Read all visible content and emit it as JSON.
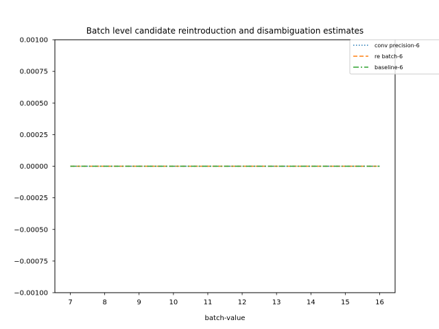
{
  "chart_data": {
    "type": "line",
    "title": "Batch level candidate reintroduction and disambiguation estimates",
    "xlabel": "batch-value",
    "ylabel": "",
    "xlim": [
      6.55,
      16.45
    ],
    "ylim": [
      -0.001,
      0.001
    ],
    "xticks": [
      7,
      8,
      9,
      10,
      11,
      12,
      13,
      14,
      15,
      16
    ],
    "xtick_labels": [
      "7",
      "8",
      "9",
      "10",
      "11",
      "12",
      "13",
      "14",
      "15",
      "16"
    ],
    "yticks": [
      -0.001,
      -0.00075,
      -0.0005,
      -0.00025,
      0,
      0.00025,
      0.0005,
      0.00075,
      0.001
    ],
    "ytick_labels": [
      "−0.00100",
      "−0.00075",
      "−0.00050",
      "−0.00025",
      "0.00000",
      "0.00025",
      "0.00050",
      "0.00075",
      "0.00100"
    ],
    "grid": false,
    "legend_position": "top-right",
    "x": [
      7,
      8,
      9,
      10,
      11,
      12,
      13,
      14,
      15,
      16
    ],
    "series": [
      {
        "name": "conv precision-6",
        "values": [
          0,
          0,
          0,
          0,
          0,
          0,
          0,
          0,
          0,
          0
        ],
        "color": "#1f77b4",
        "linestyle": "dotted"
      },
      {
        "name": "re batch-6",
        "values": [
          0,
          0,
          0,
          0,
          0,
          0,
          0,
          0,
          0,
          0
        ],
        "color": "#ff7f0e",
        "linestyle": "dashed"
      },
      {
        "name": "baseline-6",
        "values": [
          0,
          0,
          0,
          0,
          0,
          0,
          0,
          0,
          0,
          0
        ],
        "color": "#2ca02c",
        "linestyle": "dashdot"
      }
    ]
  }
}
